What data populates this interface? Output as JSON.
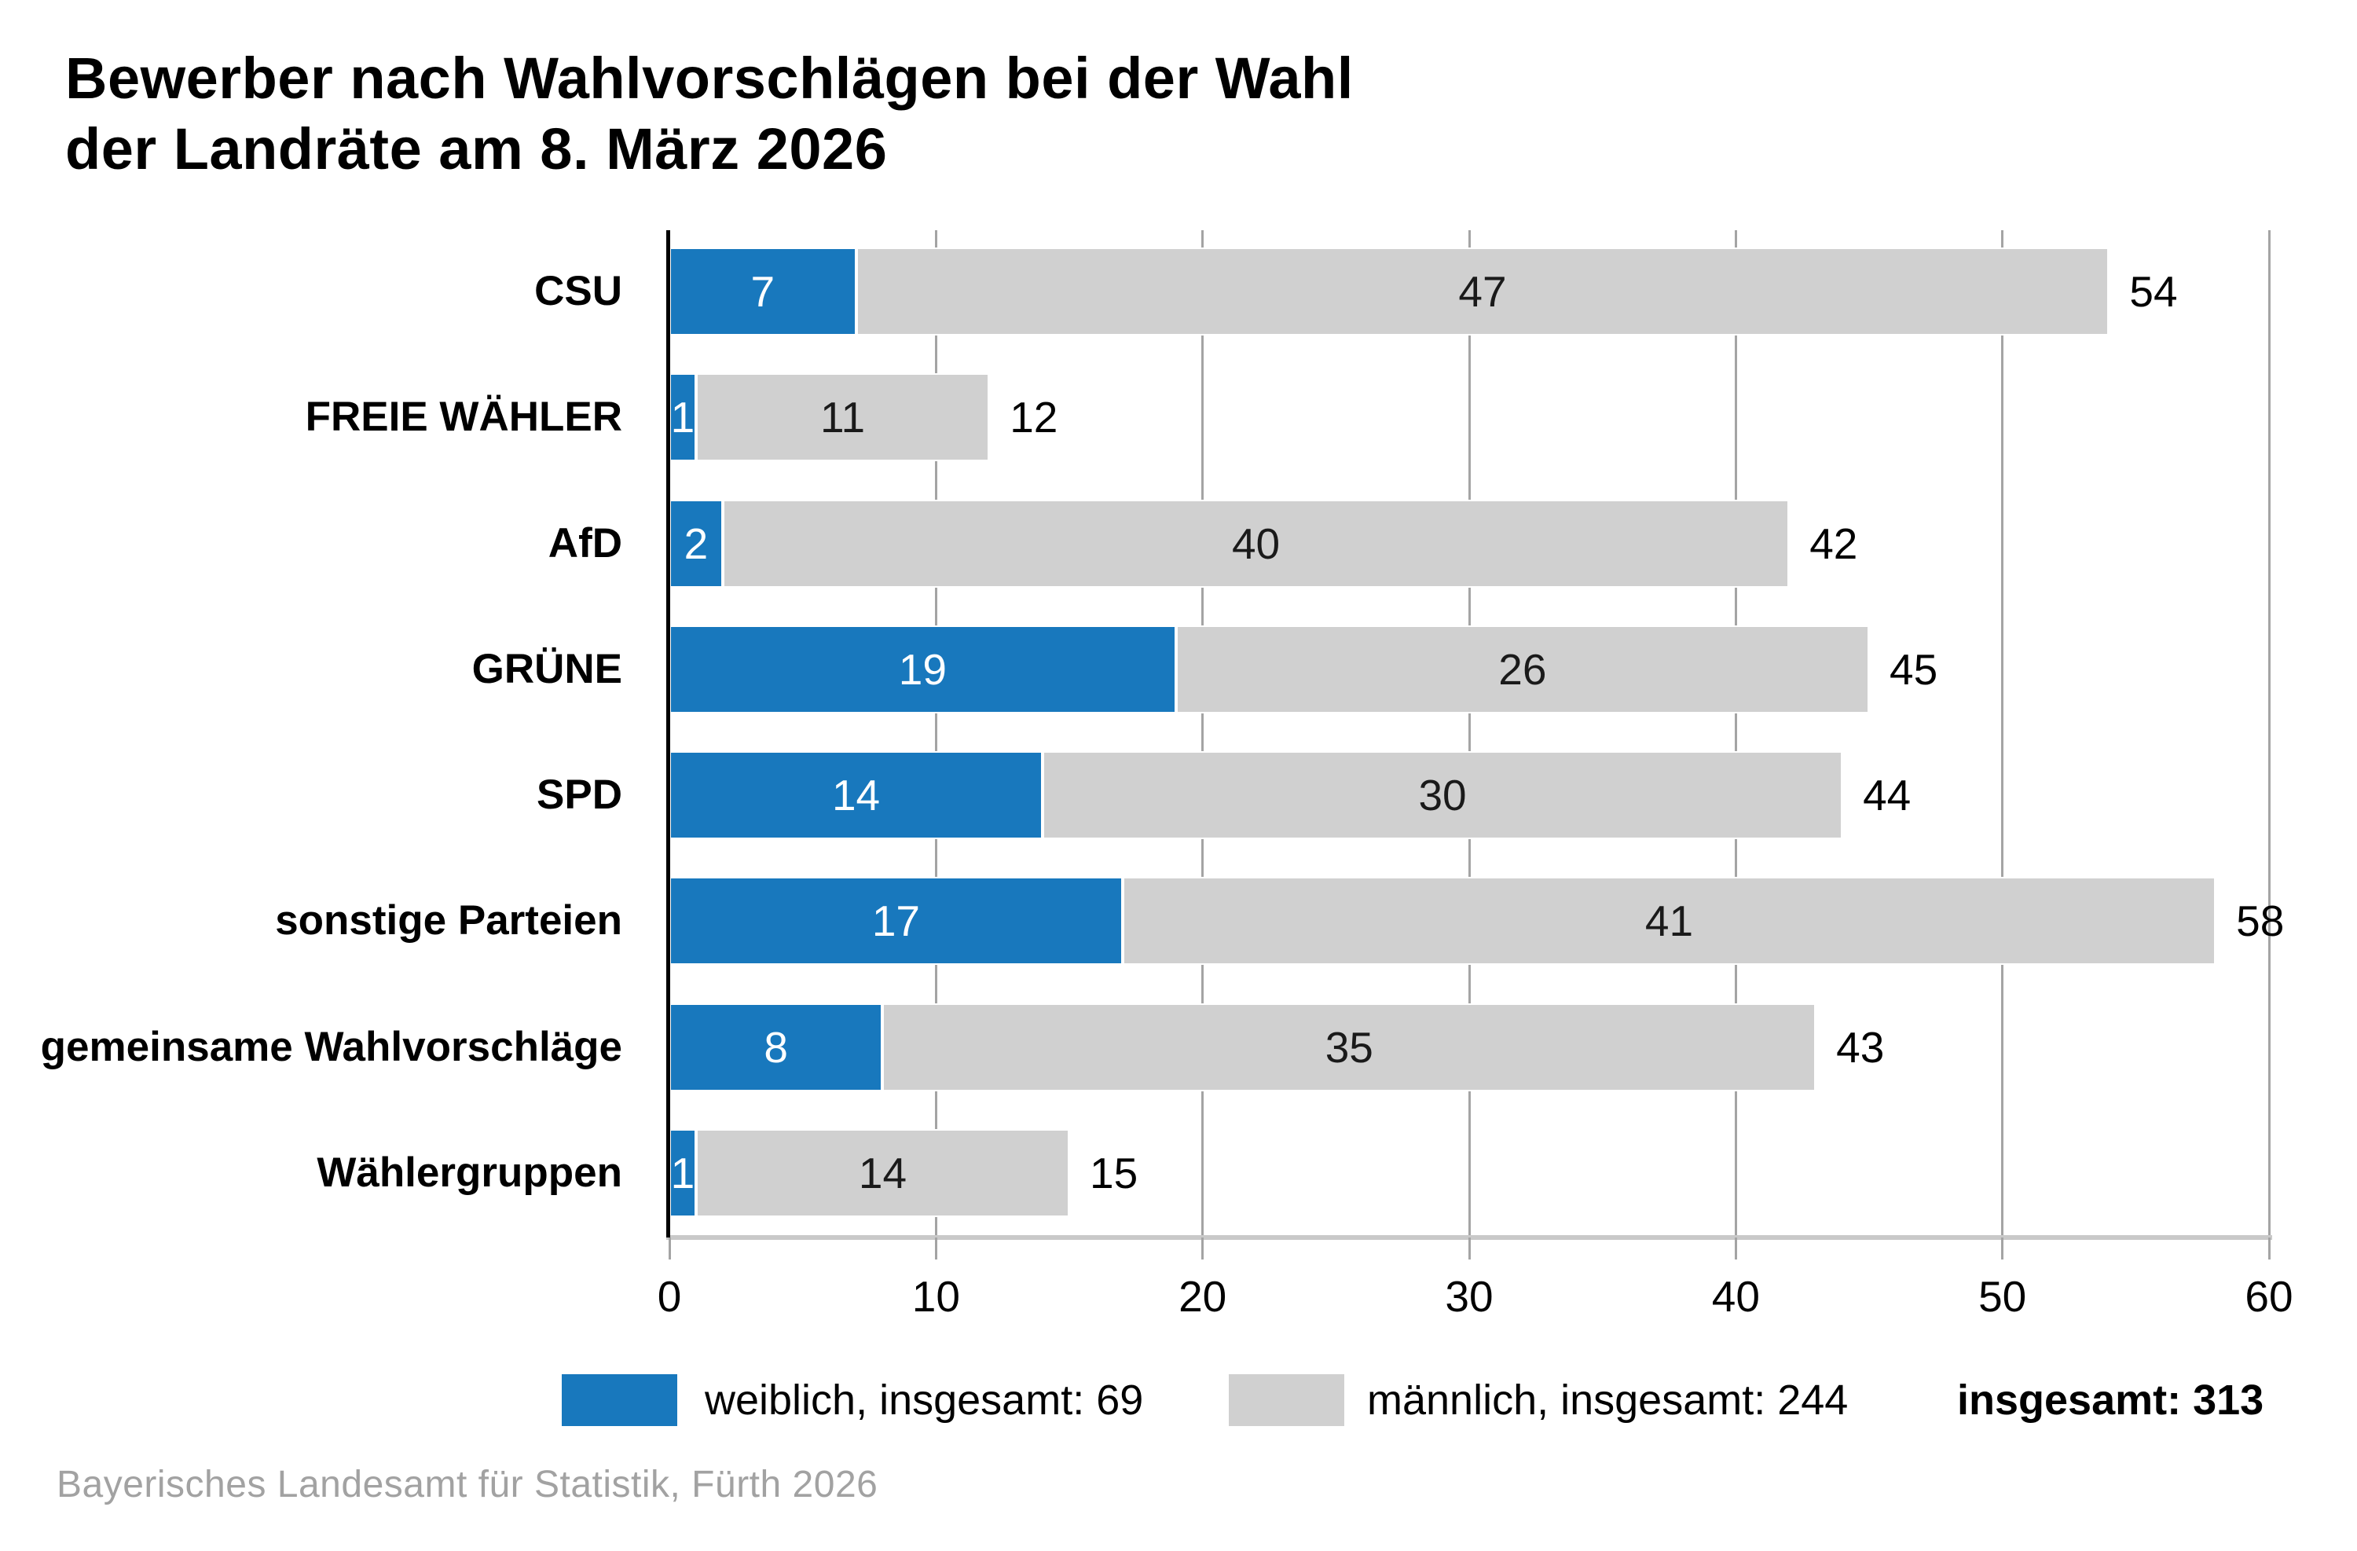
{
  "title": {
    "line1": "Bewerber nach Wahlvorschlägen bei der Wahl",
    "line2": "der Landräte am 8. März 2026"
  },
  "footer": "Bayerisches Landesamt für Statistik, Fürth 2026",
  "legend": {
    "female_label": "weiblich, insgesamt: 69",
    "male_label": "männlich, insgesamt: 244",
    "total_label": "insgesamt: 313"
  },
  "colors": {
    "female": "#1878bd",
    "male": "#d0d0d0",
    "value_on_female": "#ffffff",
    "value_on_male": "#1a1a1a",
    "grid": "#a4a4a4",
    "axis": "#000000",
    "baseline": "#c9c9c9",
    "footer_text": "#a2a2a2"
  },
  "chart_data": {
    "type": "bar",
    "orientation": "horizontal",
    "stacked": true,
    "title": "Bewerber nach Wahlvorschlägen bei der Wahl der Landräte am 8. März 2026",
    "categories": [
      "CSU",
      "FREIE WÄHLER",
      "AfD",
      "GRÜNE",
      "SPD",
      "sonstige Parteien",
      "gemeinsame Wahlvorschläge",
      "Wählergruppen"
    ],
    "series": [
      {
        "name": "weiblich",
        "total": 69,
        "color": "#1878bd",
        "values": [
          7,
          1,
          2,
          19,
          14,
          17,
          8,
          1
        ]
      },
      {
        "name": "männlich",
        "total": 244,
        "color": "#d0d0d0",
        "values": [
          47,
          11,
          40,
          26,
          30,
          41,
          35,
          14
        ]
      }
    ],
    "totals": [
      54,
      12,
      42,
      45,
      44,
      58,
      43,
      15
    ],
    "grand_total": 313,
    "xlabel": "",
    "ylabel": "",
    "xlim": [
      0,
      60
    ],
    "xticks": [
      "0",
      "10",
      "20",
      "30",
      "40",
      "50",
      "60"
    ],
    "grid": true,
    "legend_position": "bottom"
  }
}
